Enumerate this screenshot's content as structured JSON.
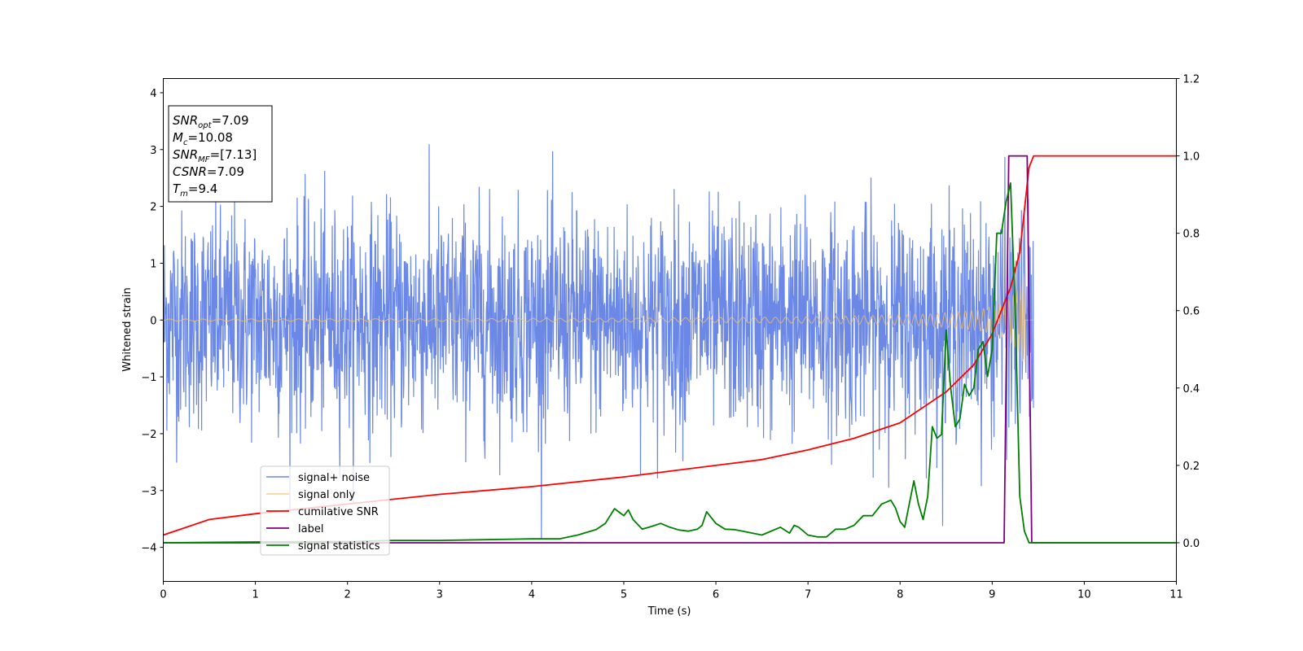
{
  "chart_data": {
    "type": "line",
    "title": "",
    "xlabel": "Time (s)",
    "ylabel": "Whitened strain",
    "xlim": [
      0,
      11
    ],
    "ylim": [
      -4.6,
      4.25
    ],
    "y2lim": [
      -0.1,
      1.2
    ],
    "grid": false,
    "legend_position": "lower-left",
    "x_ticks": [
      "0",
      "1",
      "2",
      "3",
      "4",
      "5",
      "6",
      "7",
      "8",
      "9",
      "10",
      "11"
    ],
    "y_ticks": [
      "4",
      "3",
      "2",
      "1",
      "0",
      "−1",
      "−2",
      "−3",
      "−4"
    ],
    "y2_ticks": [
      "1.2",
      "1.0",
      "0.8",
      "0.6",
      "0.4",
      "0.2",
      "0.0"
    ],
    "annotation": [
      {
        "var": "SNR",
        "sub": "opt",
        "value": "=7.09"
      },
      {
        "var": "M",
        "sub": "c",
        "value": "=10.08"
      },
      {
        "var": "SNR",
        "sub": "MF",
        "value": "=[7.13]"
      },
      {
        "var": "CSNR",
        "sub": "",
        "value": "=7.09"
      },
      {
        "var": "T",
        "sub": "m",
        "value": "=9.4"
      }
    ],
    "series": [
      {
        "name": "signal+ noise",
        "color": "#6b88e6",
        "axis": "left",
        "note": "whitened noise, std ~0.95, spikes to about ±3.8"
      },
      {
        "name": "signal only",
        "color": "#f5c26b",
        "axis": "left",
        "note": "chirp; amplitude grows from ~0.02 at t=0 to ~1.2 near t=9.3, then 0"
      },
      {
        "name": "cumilative SNR",
        "color": "#ff0000",
        "axis": "right",
        "x": [
          0,
          0.5,
          1,
          2,
          3,
          4,
          5,
          6,
          6.5,
          7,
          7.5,
          8,
          8.5,
          8.8,
          9,
          9.1,
          9.2,
          9.3,
          9.4,
          9.45,
          11
        ],
        "y": [
          0.02,
          0.06,
          0.075,
          0.1,
          0.125,
          0.145,
          0.17,
          0.2,
          0.215,
          0.24,
          0.27,
          0.31,
          0.39,
          0.46,
          0.54,
          0.6,
          0.66,
          0.75,
          0.97,
          1.0,
          1.0
        ]
      },
      {
        "name": "label",
        "color": "#800080",
        "axis": "right",
        "x": [
          0,
          9.13,
          9.18,
          9.38,
          9.43,
          11
        ],
        "y": [
          0.0,
          0.0,
          1.0,
          1.0,
          0.0,
          0.0
        ]
      },
      {
        "name": "signal statistics",
        "color": "#008000",
        "axis": "right",
        "x": [
          0,
          1,
          2,
          2.5,
          3,
          3.5,
          4,
          4.3,
          4.5,
          4.7,
          4.8,
          4.9,
          5.0,
          5.05,
          5.1,
          5.2,
          5.3,
          5.4,
          5.5,
          5.6,
          5.7,
          5.8,
          5.85,
          5.9,
          6.0,
          6.1,
          6.2,
          6.5,
          6.7,
          6.8,
          6.85,
          6.9,
          7.0,
          7.1,
          7.2,
          7.3,
          7.4,
          7.5,
          7.6,
          7.7,
          7.8,
          7.9,
          7.95,
          8.0,
          8.05,
          8.1,
          8.15,
          8.2,
          8.25,
          8.3,
          8.35,
          8.4,
          8.45,
          8.5,
          8.55,
          8.6,
          8.65,
          8.7,
          8.75,
          8.8,
          8.85,
          8.9,
          8.95,
          9.0,
          9.05,
          9.1,
          9.15,
          9.2,
          9.25,
          9.3,
          9.35,
          9.4,
          9.45,
          9.5,
          9.6,
          10,
          11
        ],
        "y": [
          0.0,
          0.002,
          0.003,
          0.006,
          0.006,
          0.008,
          0.01,
          0.01,
          0.02,
          0.034,
          0.05,
          0.088,
          0.07,
          0.085,
          0.06,
          0.035,
          0.042,
          0.05,
          0.04,
          0.033,
          0.03,
          0.035,
          0.045,
          0.08,
          0.05,
          0.035,
          0.034,
          0.02,
          0.04,
          0.025,
          0.045,
          0.04,
          0.02,
          0.015,
          0.015,
          0.035,
          0.035,
          0.045,
          0.07,
          0.07,
          0.1,
          0.11,
          0.09,
          0.055,
          0.04,
          0.1,
          0.16,
          0.1,
          0.06,
          0.12,
          0.3,
          0.27,
          0.28,
          0.55,
          0.4,
          0.3,
          0.32,
          0.41,
          0.38,
          0.4,
          0.5,
          0.52,
          0.43,
          0.5,
          0.8,
          0.8,
          0.88,
          0.93,
          0.6,
          0.12,
          0.03,
          0.0,
          0.0,
          0.0,
          0.0,
          0.0,
          0.0
        ]
      }
    ]
  }
}
